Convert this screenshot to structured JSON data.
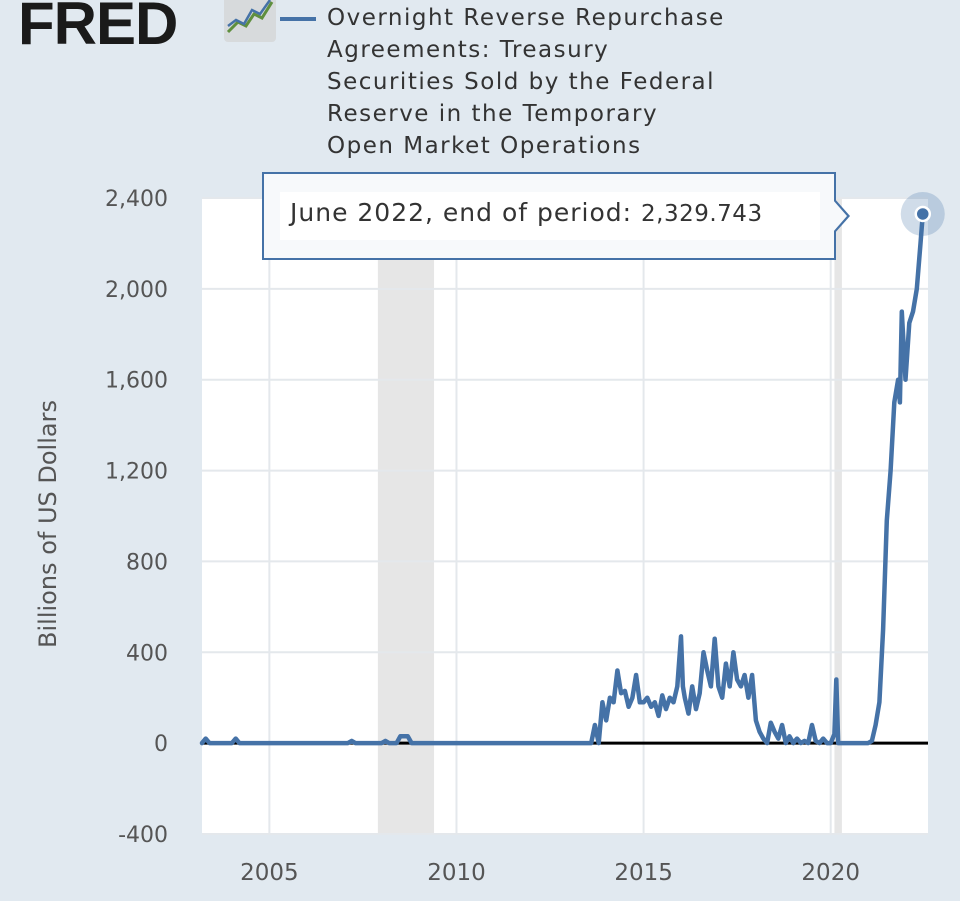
{
  "brand": {
    "name": "FRED",
    "registered": "®"
  },
  "legend": {
    "series_title": "Overnight Reverse Repurchase\nAgreements: Treasury\nSecurities Sold by the Federal\nReserve in the Temporary\nOpen Market Operations",
    "color": "#4572a7"
  },
  "tooltip": {
    "label": "June 2022, end of period:",
    "value": "2,329.743"
  },
  "colors": {
    "page_bg": "#e1e9f0",
    "plot_bg": "#ffffff",
    "series": "#4572a7",
    "recession": "#e6e6e6",
    "zero_line": "#000000"
  },
  "chart_data": {
    "type": "line",
    "title": "",
    "xlabel": "",
    "ylabel": "Billions of US Dollars",
    "xlim": [
      2003.2,
      2022.6
    ],
    "ylim": [
      -400,
      2400
    ],
    "y_ticks": [
      -400,
      0,
      400,
      800,
      1200,
      1600,
      2000,
      2400
    ],
    "y_tick_labels": [
      "-400",
      "0",
      "400",
      "800",
      "1,200",
      "1,600",
      "2,000",
      "2,400"
    ],
    "x_ticks": [
      2005,
      2010,
      2015,
      2020
    ],
    "x_tick_labels": [
      "2005",
      "2010",
      "2015",
      "2020"
    ],
    "grid": true,
    "recession_shading": [
      [
        2007.9,
        2009.4
      ],
      [
        2020.1,
        2020.3
      ]
    ],
    "highlight_point": {
      "x": 2022.46,
      "y": 2329.743
    },
    "series": [
      {
        "name": "Overnight Reverse Repurchase Agreements: Treasury Securities Sold by the Federal Reserve in the Temporary Open Market Operations",
        "x": [
          2003.2,
          2003.3,
          2003.4,
          2003.5,
          2003.6,
          2003.7,
          2003.8,
          2003.9,
          2004.0,
          2004.1,
          2004.2,
          2007.1,
          2007.2,
          2007.3,
          2008.0,
          2008.1,
          2008.2,
          2008.4,
          2008.5,
          2008.6,
          2008.7,
          2008.8,
          2008.9,
          2009.0,
          2013.6,
          2013.7,
          2013.8,
          2013.9,
          2014.0,
          2014.1,
          2014.2,
          2014.3,
          2014.4,
          2014.5,
          2014.6,
          2014.7,
          2014.8,
          2014.9,
          2015.0,
          2015.1,
          2015.2,
          2015.3,
          2015.4,
          2015.5,
          2015.6,
          2015.7,
          2015.8,
          2015.9,
          2016.0,
          2016.05,
          2016.1,
          2016.2,
          2016.3,
          2016.4,
          2016.5,
          2016.6,
          2016.7,
          2016.8,
          2016.9,
          2017.0,
          2017.1,
          2017.2,
          2017.3,
          2017.4,
          2017.5,
          2017.6,
          2017.7,
          2017.8,
          2017.9,
          2018.0,
          2018.1,
          2018.2,
          2018.3,
          2018.4,
          2018.5,
          2018.6,
          2018.7,
          2018.8,
          2018.9,
          2019.0,
          2019.1,
          2019.2,
          2019.3,
          2019.4,
          2019.5,
          2019.6,
          2019.7,
          2019.8,
          2019.9,
          2020.0,
          2020.1,
          2020.15,
          2020.2,
          2020.3,
          2020.4,
          2020.6,
          2020.8,
          2021.0,
          2021.1,
          2021.2,
          2021.3,
          2021.4,
          2021.5,
          2021.6,
          2021.7,
          2021.8,
          2021.85,
          2021.9,
          2022.0,
          2022.1,
          2022.2,
          2022.3,
          2022.4,
          2022.46
        ],
        "y": [
          0,
          20,
          0,
          0,
          0,
          0,
          0,
          0,
          0,
          20,
          0,
          0,
          10,
          0,
          0,
          10,
          0,
          0,
          30,
          30,
          30,
          0,
          0,
          0,
          0,
          80,
          0,
          180,
          100,
          200,
          180,
          320,
          220,
          230,
          160,
          200,
          300,
          180,
          180,
          200,
          160,
          180,
          120,
          210,
          150,
          200,
          180,
          250,
          470,
          250,
          200,
          130,
          250,
          150,
          220,
          400,
          320,
          250,
          460,
          250,
          200,
          350,
          250,
          400,
          280,
          250,
          300,
          200,
          300,
          100,
          50,
          20,
          0,
          90,
          50,
          20,
          80,
          0,
          30,
          0,
          20,
          0,
          10,
          0,
          80,
          10,
          0,
          20,
          0,
          0,
          40,
          280,
          0,
          0,
          0,
          0,
          0,
          0,
          10,
          80,
          180,
          500,
          980,
          1200,
          1500,
          1600,
          1500,
          1900,
          1600,
          1850,
          1900,
          2000,
          2200,
          2329.743
        ]
      }
    ]
  }
}
